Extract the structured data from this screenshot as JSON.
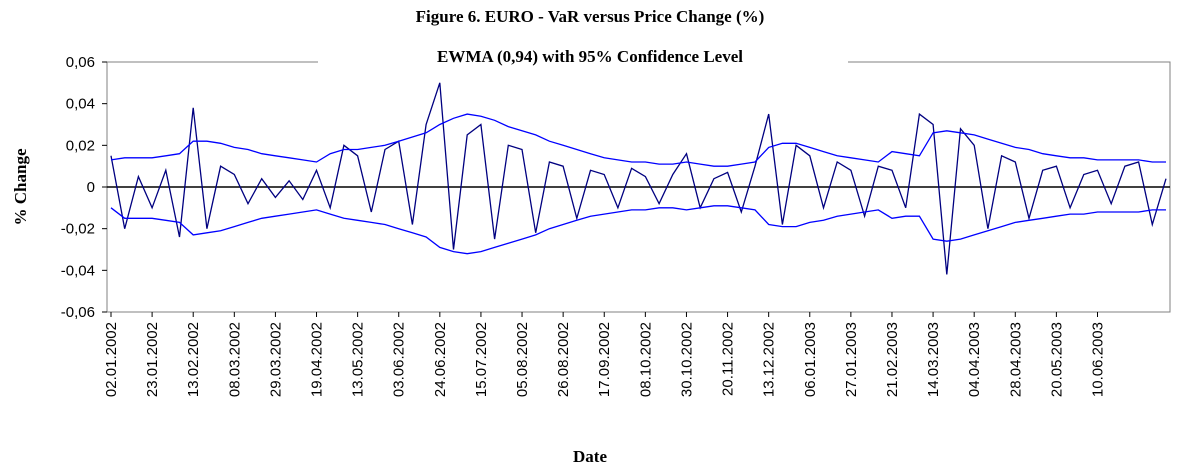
{
  "chart_data": {
    "type": "line",
    "title": "Figure 6. EURO - VaR versus Price Change (%)",
    "subtitle": "EWMA (0,94) with 95% Confidence Level",
    "x_label": "Date",
    "y_label": "% Change",
    "categories": [
      "02.01.2002",
      null,
      null,
      "23.01.2002",
      null,
      null,
      "13.02.2002",
      null,
      null,
      "08.03.2002",
      null,
      null,
      "29.03.2002",
      null,
      null,
      "19.04.2002",
      null,
      null,
      "13.05.2002",
      null,
      null,
      "03.06.2002",
      null,
      null,
      "24.06.2002",
      null,
      null,
      "15.07.2002",
      null,
      null,
      "05.08.2002",
      null,
      null,
      "26.08.2002",
      null,
      null,
      "17.09.2002",
      null,
      null,
      "08.10.2002",
      null,
      null,
      "30.10.2002",
      null,
      null,
      "20.11.2002",
      null,
      null,
      "13.12.2002",
      null,
      null,
      "06.01.2003",
      null,
      null,
      "27.01.2003",
      null,
      null,
      "21.02.2003",
      null,
      null,
      "14.03.2003",
      null,
      null,
      "04.04.2003",
      null,
      null,
      "28.04.2003",
      null,
      null,
      "20.05.2003",
      null,
      null,
      "10.06.2003",
      null,
      null,
      null,
      null,
      null
    ],
    "series": [
      {
        "color": "#000080",
        "values": [
          0.015,
          -0.02,
          0.005,
          -0.01,
          0.008,
          -0.024,
          0.038,
          -0.02,
          0.01,
          0.006,
          -0.008,
          0.004,
          -0.005,
          0.003,
          -0.006,
          0.008,
          -0.01,
          0.02,
          0.015,
          -0.012,
          0.018,
          0.022,
          -0.018,
          0.03,
          0.05,
          -0.03,
          0.025,
          0.03,
          -0.025,
          0.02,
          0.018,
          -0.022,
          0.012,
          0.01,
          -0.015,
          0.008,
          0.006,
          -0.01,
          0.009,
          0.005,
          -0.008,
          0.006,
          0.016,
          -0.01,
          0.004,
          0.007,
          -0.012,
          0.01,
          0.035,
          -0.018,
          0.02,
          0.015,
          -0.01,
          0.012,
          0.008,
          -0.014,
          0.01,
          0.008,
          -0.01,
          0.035,
          0.03,
          -0.042,
          0.028,
          0.02,
          -0.02,
          0.015,
          0.012,
          -0.015,
          0.008,
          0.01,
          -0.01,
          0.006,
          0.008,
          -0.008,
          0.01,
          0.012,
          -0.018,
          0.004
        ]
      },
      {
        "color": "#0000ff",
        "values": [
          0.013,
          0.014,
          0.014,
          0.014,
          0.015,
          0.016,
          0.022,
          0.022,
          0.021,
          0.019,
          0.018,
          0.016,
          0.015,
          0.014,
          0.013,
          0.012,
          0.016,
          0.018,
          0.018,
          0.019,
          0.02,
          0.022,
          0.024,
          0.026,
          0.03,
          0.033,
          0.035,
          0.034,
          0.032,
          0.029,
          0.027,
          0.025,
          0.022,
          0.02,
          0.018,
          0.016,
          0.014,
          0.013,
          0.012,
          0.012,
          0.011,
          0.011,
          0.012,
          0.011,
          0.01,
          0.01,
          0.011,
          0.012,
          0.019,
          0.021,
          0.021,
          0.019,
          0.017,
          0.015,
          0.014,
          0.013,
          0.012,
          0.017,
          0.016,
          0.015,
          0.026,
          0.027,
          0.026,
          0.025,
          0.023,
          0.021,
          0.019,
          0.018,
          0.016,
          0.015,
          0.014,
          0.014,
          0.013,
          0.013,
          0.013,
          0.013,
          0.012,
          0.012
        ]
      },
      {
        "color": "#0000ff",
        "values": [
          -0.01,
          -0.015,
          -0.015,
          -0.015,
          -0.016,
          -0.017,
          -0.023,
          -0.022,
          -0.021,
          -0.019,
          -0.017,
          -0.015,
          -0.014,
          -0.013,
          -0.012,
          -0.011,
          -0.013,
          -0.015,
          -0.016,
          -0.017,
          -0.018,
          -0.02,
          -0.022,
          -0.024,
          -0.029,
          -0.031,
          -0.032,
          -0.031,
          -0.029,
          -0.027,
          -0.025,
          -0.023,
          -0.02,
          -0.018,
          -0.016,
          -0.014,
          -0.013,
          -0.012,
          -0.011,
          -0.011,
          -0.01,
          -0.01,
          -0.011,
          -0.01,
          -0.009,
          -0.009,
          -0.01,
          -0.011,
          -0.018,
          -0.019,
          -0.019,
          -0.017,
          -0.016,
          -0.014,
          -0.013,
          -0.012,
          -0.011,
          -0.015,
          -0.014,
          -0.014,
          -0.025,
          -0.026,
          -0.025,
          -0.023,
          -0.021,
          -0.019,
          -0.017,
          -0.016,
          -0.015,
          -0.014,
          -0.013,
          -0.013,
          -0.012,
          -0.012,
          -0.012,
          -0.012,
          -0.011,
          -0.011
        ]
      }
    ],
    "ylim": [
      -0.06,
      0.06
    ],
    "yticks": [
      {
        "value": -0.06,
        "label": "-0,06"
      },
      {
        "value": -0.04,
        "label": "-0,04"
      },
      {
        "value": -0.02,
        "label": "-0,02"
      },
      0,
      {
        "value": 0.02,
        "label": "0,02"
      },
      {
        "value": 0.04,
        "label": "0,04"
      },
      {
        "value": 0.06,
        "label": "0,06"
      }
    ]
  }
}
